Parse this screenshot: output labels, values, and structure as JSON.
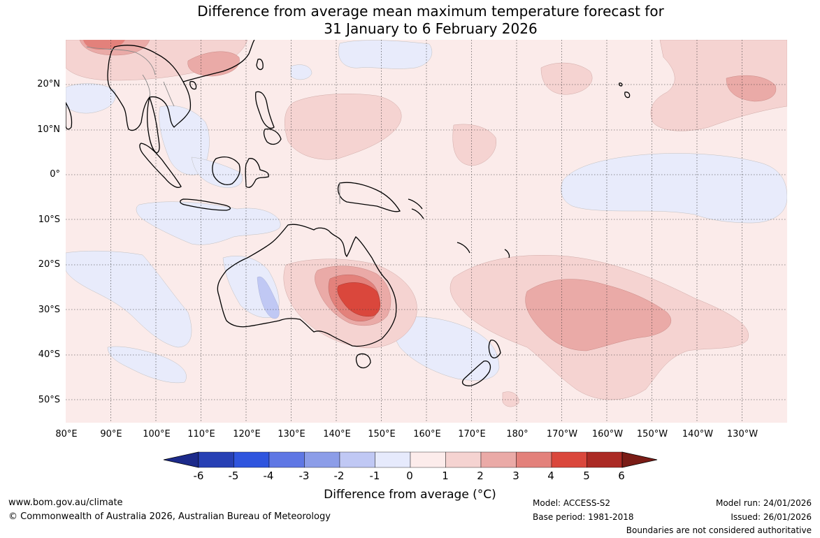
{
  "title_line1": "Difference from average mean maximum temperature forecast for",
  "title_line2": "31 January to 6 February 2026",
  "lat_labels": [
    "20°N",
    "10°N",
    "0°",
    "10°S",
    "20°S",
    "30°S",
    "40°S",
    "50°S"
  ],
  "lon_labels": [
    "80°E",
    "90°E",
    "100°E",
    "110°E",
    "120°E",
    "130°E",
    "140°E",
    "150°E",
    "160°E",
    "170°E",
    "180°",
    "170°W",
    "160°W",
    "150°W",
    "140°W",
    "130°W"
  ],
  "colorbar": {
    "ticks": [
      "-6",
      "-5",
      "-4",
      "-3",
      "-2",
      "-1",
      "0",
      "1",
      "2",
      "3",
      "4",
      "5",
      "6"
    ],
    "colors": [
      "#1c2a8a",
      "#2740b4",
      "#2f55de",
      "#5f77e4",
      "#8c9de8",
      "#c0c8f4",
      "#e6eafc",
      "#fceceb",
      "#f5d3d1",
      "#eaaaa7",
      "#e3817b",
      "#da473c",
      "#ab2a24",
      "#7a1c16"
    ],
    "label": "Difference from average (°C)"
  },
  "footer": {
    "website": "www.bom.gov.au/climate",
    "copyright": "© Commonwealth of Australia 2026, Australian Bureau of Meteorology",
    "model": "Model: ACCESS-S2",
    "base_period": "Base period: 1981-2018",
    "model_run": "Model run: 24/01/2026",
    "issued": "Issued: 26/01/2026",
    "disclaimer": "Boundaries are not considered authoritative"
  }
}
